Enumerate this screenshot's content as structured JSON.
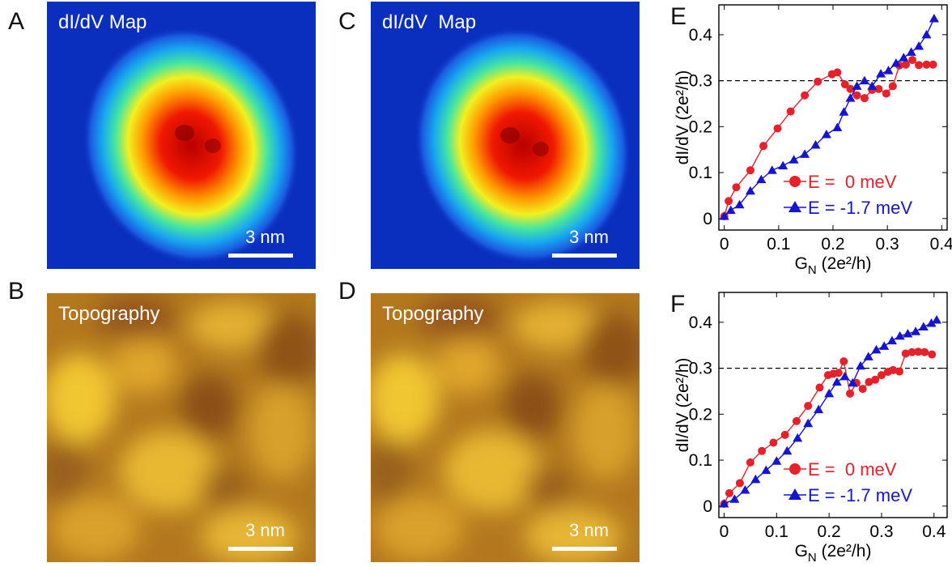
{
  "panels": {
    "A": {
      "letter": "A",
      "title": "dI/dV Map",
      "scale_label": "3 nm"
    },
    "B": {
      "letter": "B",
      "title": "Topography",
      "scale_label": "3 nm"
    },
    "C": {
      "letter": "C",
      "title": "dI/dV  Map",
      "scale_label": "3 nm"
    },
    "D": {
      "letter": "D",
      "title": "Topography",
      "scale_label": "3 nm"
    }
  },
  "colors": {
    "series_zero": "#e8202a",
    "series_neg": "#1414d2",
    "map_background": "#0a2fbf",
    "topo_base": "#b3781e"
  },
  "chart_data": [
    {
      "letter": "E",
      "type": "line",
      "xlabel": "G",
      "xlabel_sub": "N",
      "xlabel_tail": " (2e²/h)",
      "ylabel": "dI/dV (2e²/h)",
      "xlim": [
        -0.01,
        0.41
      ],
      "ylim": [
        -0.025,
        0.465
      ],
      "xticks": [
        0,
        0.1,
        0.2,
        0.3,
        0.4
      ],
      "xtick_labels": [
        "0",
        "0.1",
        "0.2",
        "0.3",
        "0.4"
      ],
      "yticks": [
        0,
        0.1,
        0.2,
        0.3,
        0.4
      ],
      "ytick_labels": [
        "0",
        "0.1",
        "0.2",
        "0.3",
        "0.4"
      ],
      "reference_line": 0.3,
      "legend_position": "bottom-right",
      "series": [
        {
          "name": "E =  0 meV",
          "marker": "circle",
          "color": "#e8202a",
          "x": [
            0.0,
            0.008,
            0.022,
            0.048,
            0.072,
            0.098,
            0.122,
            0.148,
            0.172,
            0.198,
            0.208,
            0.222,
            0.232,
            0.244,
            0.258,
            0.272,
            0.284,
            0.298,
            0.31,
            0.322,
            0.334,
            0.346,
            0.358,
            0.372,
            0.384
          ],
          "y": [
            0.005,
            0.038,
            0.068,
            0.105,
            0.158,
            0.196,
            0.233,
            0.268,
            0.298,
            0.314,
            0.318,
            0.292,
            0.282,
            0.268,
            0.262,
            0.28,
            0.282,
            0.272,
            0.288,
            0.333,
            0.335,
            0.345,
            0.334,
            0.335,
            0.335
          ]
        },
        {
          "name": "E = -1.7 meV",
          "marker": "triangle",
          "color": "#1414d2",
          "x": [
            0.0,
            0.012,
            0.028,
            0.048,
            0.068,
            0.088,
            0.108,
            0.128,
            0.148,
            0.168,
            0.188,
            0.208,
            0.22,
            0.232,
            0.244,
            0.258,
            0.272,
            0.288,
            0.302,
            0.316,
            0.33,
            0.344,
            0.358,
            0.372,
            0.386
          ],
          "y": [
            0.005,
            0.018,
            0.03,
            0.06,
            0.085,
            0.105,
            0.115,
            0.128,
            0.14,
            0.16,
            0.183,
            0.198,
            0.232,
            0.262,
            0.288,
            0.3,
            0.288,
            0.315,
            0.322,
            0.338,
            0.35,
            0.362,
            0.375,
            0.4,
            0.435
          ]
        }
      ]
    },
    {
      "letter": "F",
      "type": "line",
      "xlabel": "G",
      "xlabel_sub": "N",
      "xlabel_tail": " (2e²/h)",
      "ylabel": "dI/dV (2e²/h)",
      "xlim": [
        -0.01,
        0.425
      ],
      "ylim": [
        -0.025,
        0.465
      ],
      "xticks": [
        0,
        0.1,
        0.2,
        0.3,
        0.4
      ],
      "xtick_labels": [
        "0",
        "0.1",
        "0.2",
        "0.3",
        "0.4"
      ],
      "yticks": [
        0,
        0.1,
        0.2,
        0.3,
        0.4
      ],
      "ytick_labels": [
        "0",
        "0.1",
        "0.2",
        "0.3",
        "0.4"
      ],
      "reference_line": 0.3,
      "legend_position": "bottom-right",
      "series": [
        {
          "name": "E =  0 meV",
          "marker": "circle",
          "color": "#e8202a",
          "x": [
            0.0,
            0.01,
            0.03,
            0.05,
            0.072,
            0.094,
            0.116,
            0.138,
            0.16,
            0.182,
            0.198,
            0.208,
            0.218,
            0.228,
            0.24,
            0.252,
            0.264,
            0.276,
            0.288,
            0.3,
            0.312,
            0.322,
            0.334,
            0.346,
            0.358,
            0.37,
            0.382,
            0.396
          ],
          "y": [
            0.005,
            0.028,
            0.05,
            0.095,
            0.12,
            0.138,
            0.155,
            0.185,
            0.218,
            0.258,
            0.285,
            0.288,
            0.29,
            0.315,
            0.245,
            0.268,
            0.255,
            0.27,
            0.275,
            0.285,
            0.292,
            0.296,
            0.293,
            0.332,
            0.335,
            0.336,
            0.335,
            0.33
          ]
        },
        {
          "name": "E = -1.7 meV",
          "marker": "triangle",
          "color": "#1414d2",
          "x": [
            0.0,
            0.02,
            0.04,
            0.06,
            0.08,
            0.1,
            0.12,
            0.14,
            0.16,
            0.18,
            0.2,
            0.215,
            0.23,
            0.245,
            0.26,
            0.275,
            0.29,
            0.305,
            0.32,
            0.335,
            0.35,
            0.365,
            0.38,
            0.395,
            0.405
          ],
          "y": [
            0.005,
            0.015,
            0.035,
            0.058,
            0.078,
            0.098,
            0.12,
            0.148,
            0.18,
            0.21,
            0.245,
            0.27,
            0.282,
            0.268,
            0.305,
            0.325,
            0.34,
            0.348,
            0.36,
            0.37,
            0.375,
            0.38,
            0.39,
            0.398,
            0.405
          ]
        }
      ]
    }
  ]
}
